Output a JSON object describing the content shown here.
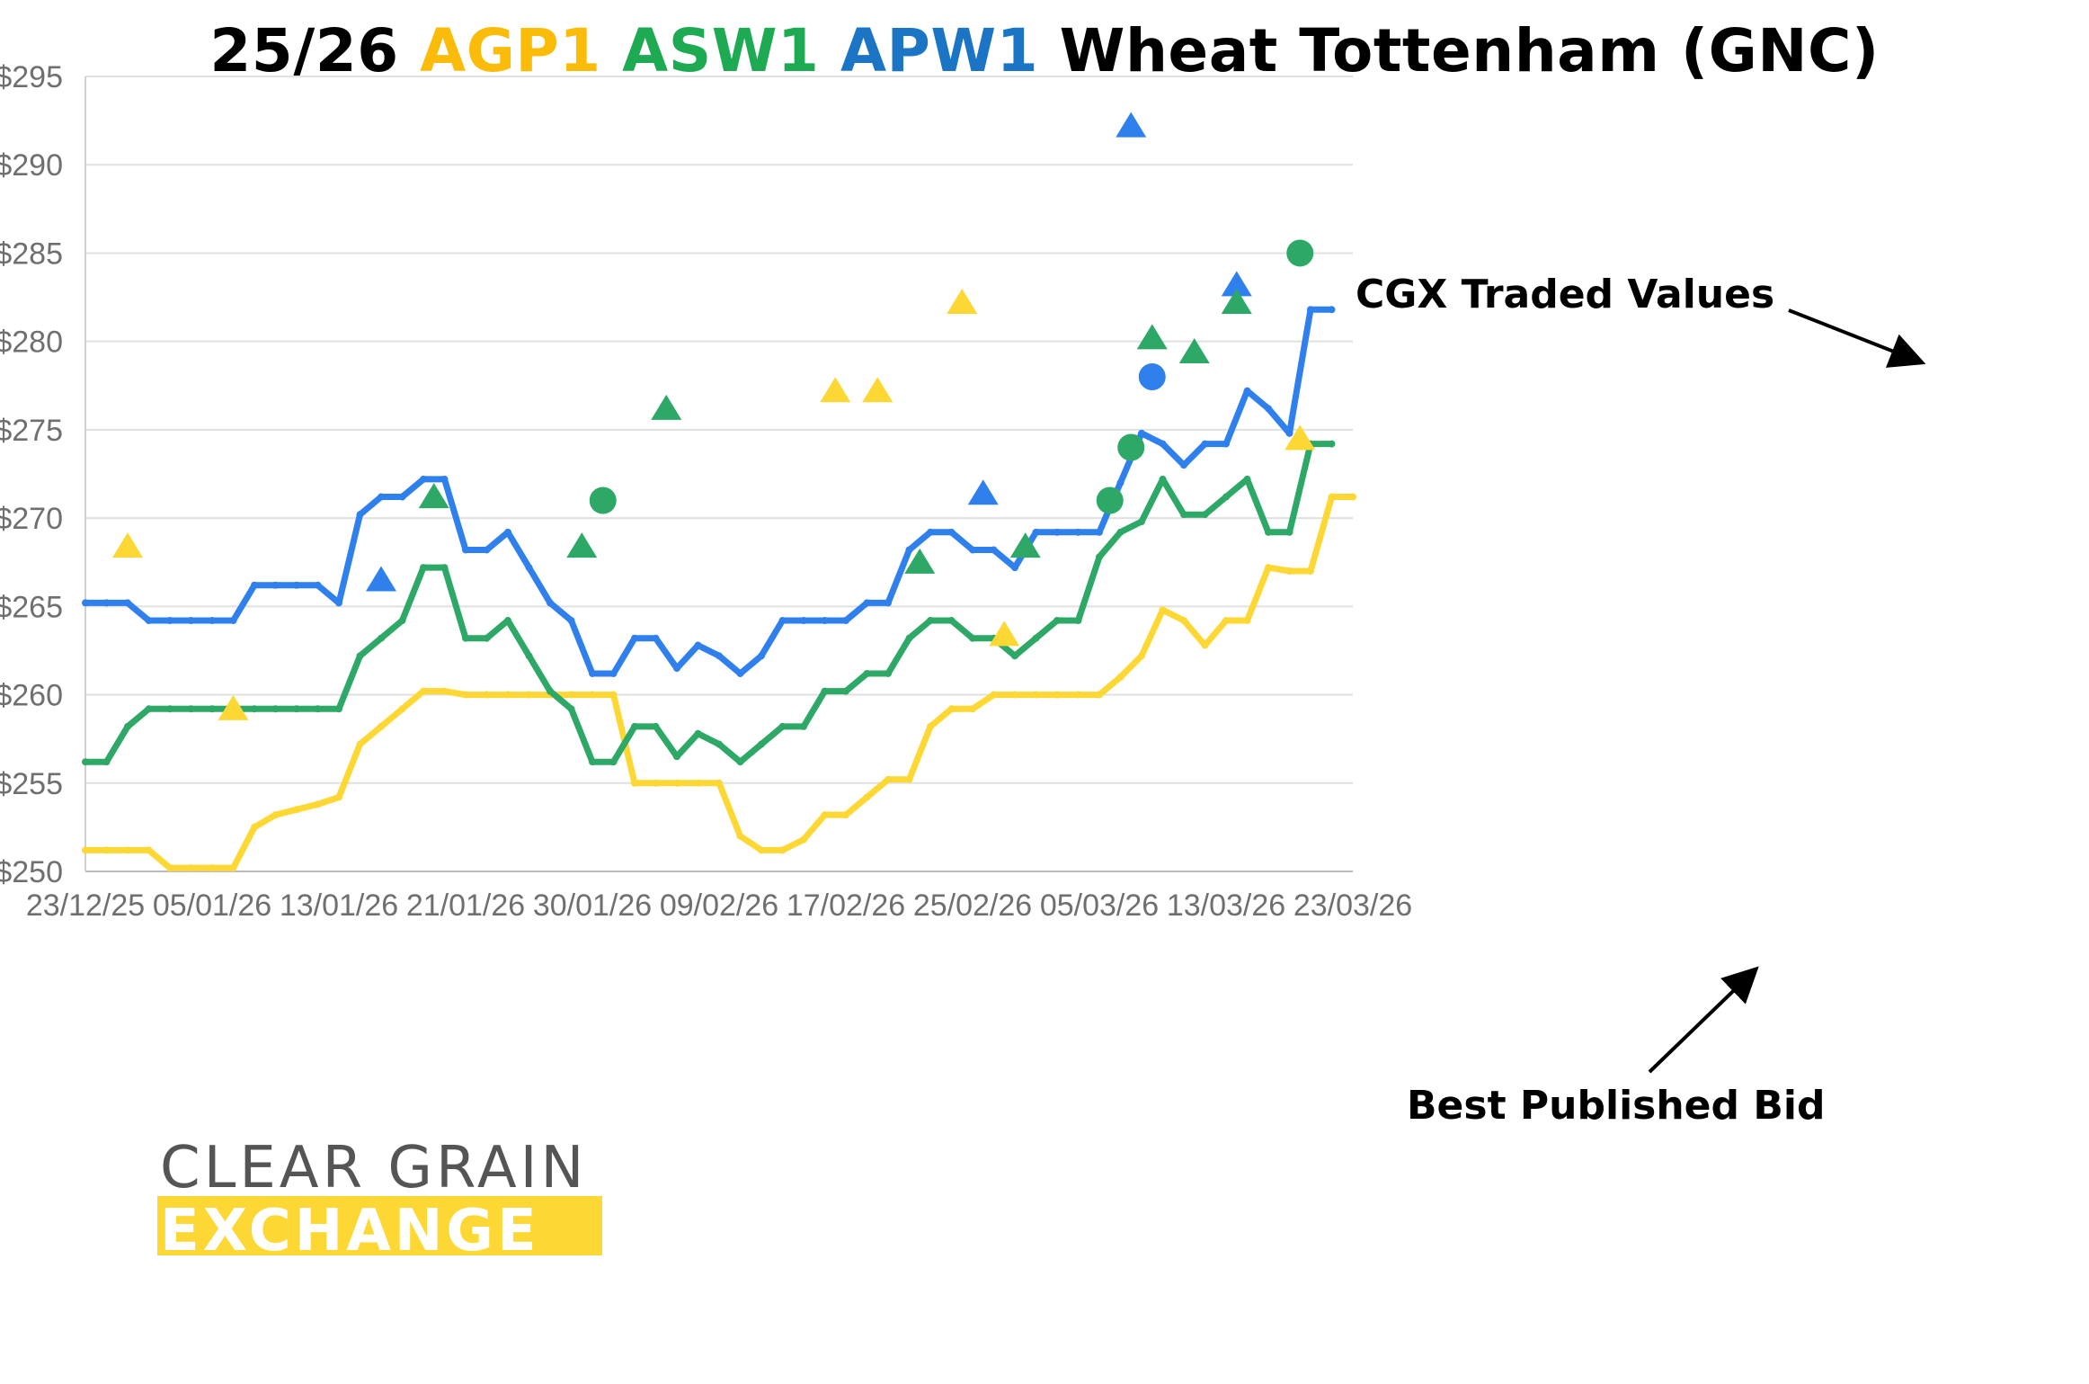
{
  "title": {
    "prefix": "25/26",
    "agp": "AGP1",
    "asw": "ASW1",
    "apw": "APW1",
    "suffix": "Wheat Tottenham (GNC)"
  },
  "colors": {
    "AGP1": "#FDD835",
    "ASW1": "#2EA866",
    "APW1": "#2F80ED",
    "title_agp": "#FBBC09",
    "title_asw": "#1DAA52",
    "title_apw": "#1B75C4"
  },
  "logo": {
    "line1": "CLEAR GRAIN",
    "line2": "EXCHANGE",
    "accent": "#FDD835"
  },
  "annotations": {
    "traded": "CGX Traded Values",
    "bid": "Best Published Bid"
  },
  "chart_data": {
    "type": "line",
    "x_tick_labels": [
      "23/12/25",
      "05/01/26",
      "13/01/26",
      "21/01/26",
      "30/01/26",
      "09/02/26",
      "17/02/26",
      "25/02/26",
      "05/03/26",
      "13/03/26",
      "23/03/26"
    ],
    "y_tick_labels": [
      "$250",
      "$255",
      "$260",
      "$265",
      "$270",
      "$275",
      "$280",
      "$285",
      "$290",
      "$295"
    ],
    "ylim": [
      250,
      295
    ],
    "grid": true,
    "series": [
      {
        "name": "APW1",
        "values": [
          [
            0,
            265.2
          ],
          [
            1,
            265.2
          ],
          [
            2,
            265.2
          ],
          [
            3,
            264.2
          ],
          [
            4,
            264.2
          ],
          [
            5,
            264.2
          ],
          [
            6,
            264.2
          ],
          [
            7,
            264.2
          ],
          [
            8,
            266.2
          ],
          [
            9,
            266.2
          ],
          [
            10,
            266.2
          ],
          [
            11,
            266.2
          ],
          [
            12,
            265.2
          ],
          [
            13,
            270.2
          ],
          [
            14,
            271.2
          ],
          [
            15,
            271.2
          ],
          [
            16,
            272.2
          ],
          [
            17,
            272.2
          ],
          [
            18,
            268.2
          ],
          [
            19,
            268.2
          ],
          [
            20,
            269.2
          ],
          [
            21,
            267.2
          ],
          [
            22,
            265.2
          ],
          [
            23,
            264.2
          ],
          [
            24,
            261.2
          ],
          [
            25,
            261.2
          ],
          [
            26,
            263.2
          ],
          [
            27,
            263.2
          ],
          [
            28,
            261.5
          ],
          [
            29,
            262.8
          ],
          [
            30,
            262.2
          ],
          [
            31,
            261.2
          ],
          [
            32,
            262.2
          ],
          [
            33,
            264.2
          ],
          [
            34,
            264.2
          ],
          [
            35,
            264.2
          ],
          [
            36,
            264.2
          ],
          [
            37,
            265.2
          ],
          [
            38,
            265.2
          ],
          [
            39,
            268.2
          ],
          [
            40,
            269.2
          ],
          [
            41,
            269.2
          ],
          [
            42,
            268.2
          ],
          [
            43,
            268.2
          ],
          [
            44,
            267.2
          ],
          [
            45,
            269.2
          ],
          [
            46,
            269.2
          ],
          [
            47,
            269.2
          ],
          [
            48,
            269.2
          ],
          [
            49,
            272.0
          ],
          [
            50,
            274.8
          ],
          [
            51,
            274.2
          ],
          [
            52,
            273.0
          ],
          [
            53,
            274.2
          ],
          [
            54,
            274.2
          ],
          [
            55,
            277.2
          ],
          [
            56,
            276.2
          ],
          [
            57,
            274.8
          ],
          [
            58,
            281.8
          ],
          [
            59,
            281.8
          ]
        ]
      },
      {
        "name": "ASW1",
        "values": [
          [
            0,
            256.2
          ],
          [
            1,
            256.2
          ],
          [
            2,
            258.2
          ],
          [
            3,
            259.2
          ],
          [
            4,
            259.2
          ],
          [
            5,
            259.2
          ],
          [
            6,
            259.2
          ],
          [
            7,
            259.2
          ],
          [
            8,
            259.2
          ],
          [
            9,
            259.2
          ],
          [
            10,
            259.2
          ],
          [
            11,
            259.2
          ],
          [
            12,
            259.2
          ],
          [
            13,
            262.2
          ],
          [
            14,
            263.2
          ],
          [
            15,
            264.2
          ],
          [
            16,
            267.2
          ],
          [
            17,
            267.2
          ],
          [
            18,
            263.2
          ],
          [
            19,
            263.2
          ],
          [
            20,
            264.2
          ],
          [
            21,
            262.2
          ],
          [
            22,
            260.2
          ],
          [
            23,
            259.2
          ],
          [
            24,
            256.2
          ],
          [
            25,
            256.2
          ],
          [
            26,
            258.2
          ],
          [
            27,
            258.2
          ],
          [
            28,
            256.5
          ],
          [
            29,
            257.8
          ],
          [
            30,
            257.2
          ],
          [
            31,
            256.2
          ],
          [
            32,
            257.2
          ],
          [
            33,
            258.2
          ],
          [
            34,
            258.2
          ],
          [
            35,
            260.2
          ],
          [
            36,
            260.2
          ],
          [
            37,
            261.2
          ],
          [
            38,
            261.2
          ],
          [
            39,
            263.2
          ],
          [
            40,
            264.2
          ],
          [
            41,
            264.2
          ],
          [
            42,
            263.2
          ],
          [
            43,
            263.2
          ],
          [
            44,
            262.2
          ],
          [
            45,
            263.2
          ],
          [
            46,
            264.2
          ],
          [
            47,
            264.2
          ],
          [
            48,
            267.8
          ],
          [
            49,
            269.2
          ],
          [
            50,
            269.8
          ],
          [
            51,
            272.2
          ],
          [
            52,
            270.2
          ],
          [
            53,
            270.2
          ],
          [
            54,
            271.2
          ],
          [
            55,
            272.2
          ],
          [
            56,
            269.2
          ],
          [
            57,
            269.2
          ],
          [
            58,
            274.2
          ],
          [
            59,
            274.2
          ]
        ]
      },
      {
        "name": "AGP1",
        "values": [
          [
            0,
            251.2
          ],
          [
            1,
            251.2
          ],
          [
            2,
            251.2
          ],
          [
            3,
            251.2
          ],
          [
            4,
            250.2
          ],
          [
            5,
            250.2
          ],
          [
            6,
            250.2
          ],
          [
            7,
            250.2
          ],
          [
            8,
            252.5
          ],
          [
            9,
            253.2
          ],
          [
            10,
            253.5
          ],
          [
            11,
            253.8
          ],
          [
            12,
            254.2
          ],
          [
            13,
            257.2
          ],
          [
            14,
            258.2
          ],
          [
            15,
            259.2
          ],
          [
            16,
            260.2
          ],
          [
            17,
            260.2
          ],
          [
            18,
            260.0
          ],
          [
            19,
            260.0
          ],
          [
            20,
            260.0
          ],
          [
            21,
            260.0
          ],
          [
            22,
            260.0
          ],
          [
            23,
            260.0
          ],
          [
            24,
            260.0
          ],
          [
            25,
            260.0
          ],
          [
            26,
            255.0
          ],
          [
            27,
            255.0
          ],
          [
            28,
            255.0
          ],
          [
            29,
            255.0
          ],
          [
            30,
            255.0
          ],
          [
            31,
            252.0
          ],
          [
            32,
            251.2
          ],
          [
            33,
            251.2
          ],
          [
            34,
            251.8
          ],
          [
            35,
            253.2
          ],
          [
            36,
            253.2
          ],
          [
            37,
            254.2
          ],
          [
            38,
            255.2
          ],
          [
            39,
            255.2
          ],
          [
            40,
            258.2
          ],
          [
            41,
            259.2
          ],
          [
            42,
            259.2
          ],
          [
            43,
            260.0
          ],
          [
            44,
            260.0
          ],
          [
            45,
            260.0
          ],
          [
            46,
            260.0
          ],
          [
            47,
            260.0
          ],
          [
            48,
            260.0
          ],
          [
            49,
            261.0
          ],
          [
            50,
            262.2
          ],
          [
            51,
            264.8
          ],
          [
            52,
            264.2
          ],
          [
            53,
            262.8
          ],
          [
            54,
            264.2
          ],
          [
            55,
            264.2
          ],
          [
            56,
            267.2
          ],
          [
            57,
            267.0
          ],
          [
            58,
            267.0
          ],
          [
            59,
            271.2
          ],
          [
            60,
            271.2
          ]
        ]
      }
    ],
    "traded_points": [
      {
        "series": "AGP1",
        "shape": "triangle",
        "x": 2,
        "y": 268.3
      },
      {
        "series": "AGP1",
        "shape": "triangle",
        "x": 7,
        "y": 259.1
      },
      {
        "series": "APW1",
        "shape": "triangle",
        "x": 14,
        "y": 266.4
      },
      {
        "series": "ASW1",
        "shape": "triangle",
        "x": 16.5,
        "y": 271.1
      },
      {
        "series": "ASW1",
        "shape": "triangle",
        "x": 23.5,
        "y": 268.3
      },
      {
        "series": "ASW1",
        "shape": "circle",
        "x": 24.5,
        "y": 271.0
      },
      {
        "series": "ASW1",
        "shape": "triangle",
        "x": 27.5,
        "y": 276.1
      },
      {
        "series": "AGP1",
        "shape": "triangle",
        "x": 35.5,
        "y": 277.1
      },
      {
        "series": "AGP1",
        "shape": "triangle",
        "x": 37.5,
        "y": 277.1
      },
      {
        "series": "ASW1",
        "shape": "triangle",
        "x": 39.5,
        "y": 267.4
      },
      {
        "series": "AGP1",
        "shape": "triangle",
        "x": 41.5,
        "y": 282.1
      },
      {
        "series": "APW1",
        "shape": "triangle",
        "x": 42.5,
        "y": 271.3
      },
      {
        "series": "AGP1",
        "shape": "triangle",
        "x": 43.5,
        "y": 263.3
      },
      {
        "series": "ASW1",
        "shape": "triangle",
        "x": 44.5,
        "y": 268.3
      },
      {
        "series": "ASW1",
        "shape": "circle",
        "x": 48.5,
        "y": 271.0
      },
      {
        "series": "APW1",
        "shape": "triangle",
        "x": 49.5,
        "y": 292.1
      },
      {
        "series": "ASW1",
        "shape": "circle",
        "x": 49.5,
        "y": 274.0
      },
      {
        "series": "APW1",
        "shape": "circle",
        "x": 50.5,
        "y": 278.0
      },
      {
        "series": "ASW1",
        "shape": "triangle",
        "x": 50.5,
        "y": 280.1
      },
      {
        "series": "ASW1",
        "shape": "triangle",
        "x": 52.5,
        "y": 279.3
      },
      {
        "series": "APW1",
        "shape": "triangle",
        "x": 54.5,
        "y": 283.1
      },
      {
        "series": "ASW1",
        "shape": "triangle",
        "x": 54.5,
        "y": 282.1
      },
      {
        "series": "ASW1",
        "shape": "circle",
        "x": 57.5,
        "y": 285.0
      },
      {
        "series": "AGP1",
        "shape": "triangle",
        "x": 57.5,
        "y": 274.4
      }
    ]
  }
}
